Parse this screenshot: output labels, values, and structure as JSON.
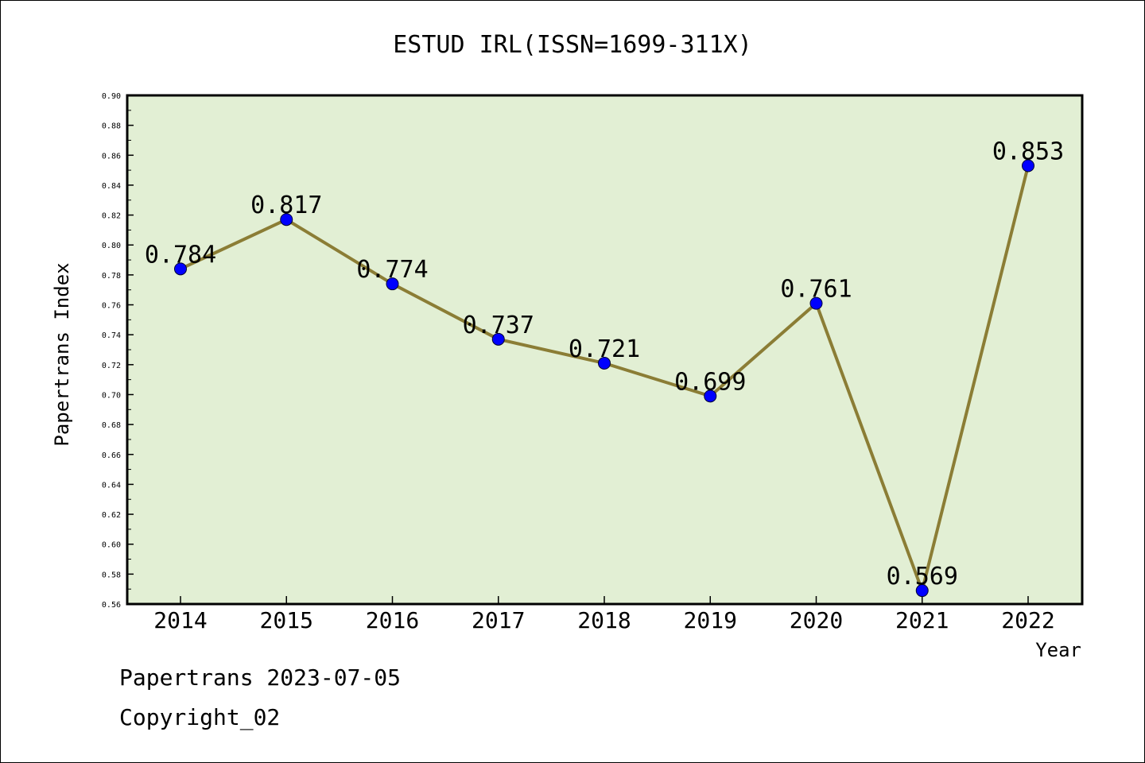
{
  "footer": {
    "line1": "Papertrans 2023-07-05",
    "line2": "Copyright_02"
  },
  "chart_data": {
    "type": "line",
    "title": "ESTUD IRL(ISSN=1699-311X)",
    "xlabel": "Year",
    "ylabel": "Papertrans Index",
    "categories": [
      "2014",
      "2015",
      "2016",
      "2017",
      "2018",
      "2019",
      "2020",
      "2021",
      "2022"
    ],
    "values": [
      0.784,
      0.817,
      0.774,
      0.737,
      0.721,
      0.699,
      0.761,
      0.569,
      0.853
    ],
    "value_labels": [
      "0.784",
      "0.817",
      "0.774",
      "0.737",
      "0.721",
      "0.699",
      "0.761",
      "0.569",
      "0.853"
    ],
    "ylim": [
      0.56,
      0.9
    ],
    "yticks": [
      "0.56",
      "0.58",
      "0.60",
      "0.62",
      "0.64",
      "0.66",
      "0.68",
      "0.70",
      "0.72",
      "0.74",
      "0.76",
      "0.78",
      "0.80",
      "0.82",
      "0.84",
      "0.86",
      "0.88",
      "0.90"
    ],
    "grid": false,
    "legend": "none",
    "colors": {
      "plot_background": "#e2efd4",
      "line": "#8b7d35",
      "marker": "#0000ff"
    }
  }
}
